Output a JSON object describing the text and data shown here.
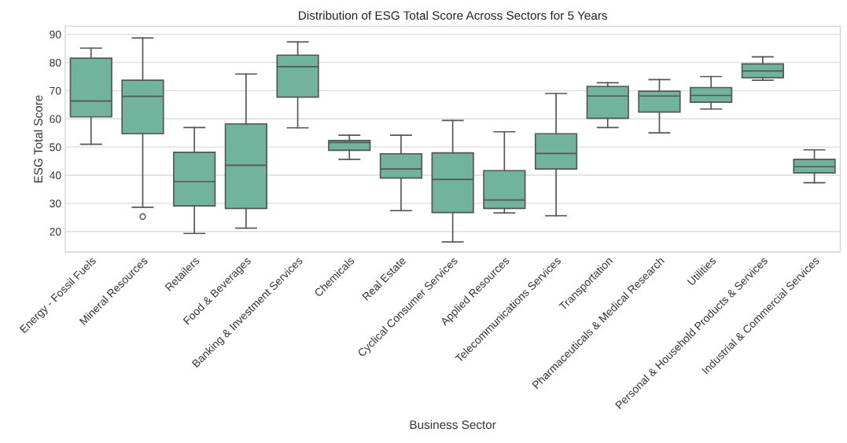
{
  "chart_data": {
    "type": "box",
    "title": "Distribution of ESG Total Score Across Sectors for 5 Years",
    "xlabel": "Business Sector",
    "ylabel": "ESG Total Score",
    "categories": [
      "Energy - Fossil Fuels",
      "Mineral Resources",
      "Retailers",
      "Food & Beverages",
      "Banking & Investment Services",
      "Chemicals",
      "Real Estate",
      "Cyclical Consumer Services",
      "Applied Resources",
      "Telecommunications Services",
      "Transportation",
      "Pharmaceuticals & Medical Research",
      "Utilities",
      "Personal & Household Products & Services",
      "Industrial & Commercial Services"
    ],
    "color": "#72b39d",
    "boxes": [
      {
        "low": 51.0,
        "q1": 60.7,
        "median": 66.3,
        "q3": 81.5,
        "high": 85.1
      },
      {
        "low": 28.6,
        "q1": 54.7,
        "median": 68.0,
        "q3": 73.7,
        "high": 88.7,
        "outliers": [
          25.3
        ]
      },
      {
        "low": 19.3,
        "q1": 29.1,
        "median": 37.7,
        "q3": 48.1,
        "high": 56.9
      },
      {
        "low": 21.2,
        "q1": 28.2,
        "median": 43.5,
        "q3": 58.2,
        "high": 75.9
      },
      {
        "low": 56.8,
        "q1": 67.7,
        "median": 78.5,
        "q3": 82.6,
        "high": 87.3
      },
      {
        "low": 45.6,
        "q1": 48.8,
        "median": 51.6,
        "q3": 52.3,
        "high": 54.2
      },
      {
        "low": 27.4,
        "q1": 39.0,
        "median": 42.2,
        "q3": 47.6,
        "high": 54.2
      },
      {
        "low": 16.3,
        "q1": 26.7,
        "median": 38.5,
        "q3": 47.9,
        "high": 59.4
      },
      {
        "low": 26.6,
        "q1": 28.2,
        "median": 31.2,
        "q3": 41.6,
        "high": 55.4
      },
      {
        "low": 25.6,
        "q1": 42.2,
        "median": 47.7,
        "q3": 54.7,
        "high": 69.0
      },
      {
        "low": 56.9,
        "q1": 60.2,
        "median": 68.1,
        "q3": 71.5,
        "high": 72.8
      },
      {
        "low": 55.0,
        "q1": 62.4,
        "median": 68.1,
        "q3": 69.8,
        "high": 73.9
      },
      {
        "low": 63.5,
        "q1": 65.9,
        "median": 68.3,
        "q3": 71.1,
        "high": 75.0
      },
      {
        "low": 73.7,
        "q1": 74.6,
        "median": 77.0,
        "q3": 79.5,
        "high": 82.0
      },
      {
        "low": 37.3,
        "q1": 40.8,
        "median": 43.0,
        "q3": 45.6,
        "high": 49.0
      }
    ],
    "ylim": [
      12.7,
      92.9
    ],
    "yticks": [
      20,
      30,
      40,
      50,
      60,
      70,
      80,
      90
    ],
    "grid": "y"
  }
}
